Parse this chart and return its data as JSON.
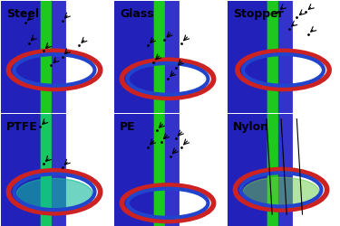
{
  "labels": [
    "Steel",
    "Glass",
    "Stopper",
    "PTFE",
    "PE",
    "Nylon"
  ],
  "grid": [
    2,
    3
  ],
  "bg_green": "#00cc00",
  "bg_green_dark": "#009900",
  "teal": "#00aaaa",
  "label_color": "black",
  "label_fontsize": 9,
  "outer_bg": "#33aa33",
  "figsize": [
    3.75,
    2.5
  ],
  "dpi": 100
}
